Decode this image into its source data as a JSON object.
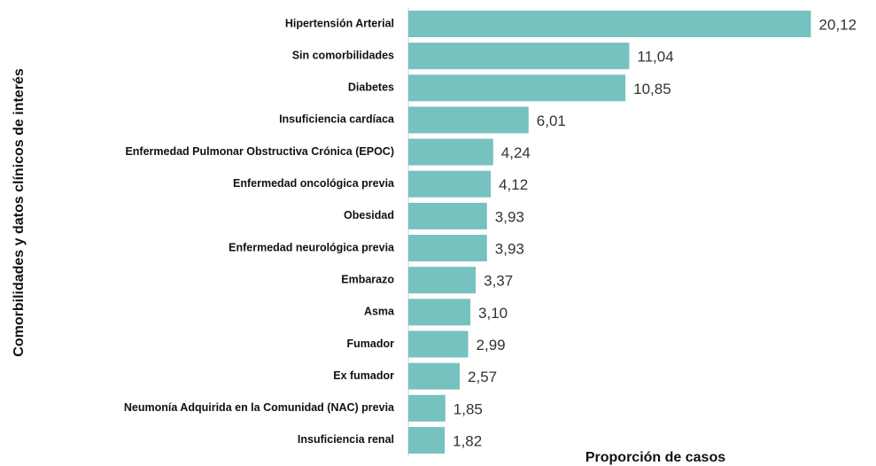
{
  "chart_data": {
    "type": "barh",
    "ylabel": "Comorbilidades y datos clínicos de interés",
    "xlabel": "Proporción de casos",
    "categories": [
      "Hipertensión Arterial",
      "Sin comorbilidades",
      "Diabetes",
      "Insuficiencia cardíaca",
      "Enfermedad Pulmonar Obstructiva Crónica (EPOC)",
      "Enfermedad oncológica previa",
      "Obesidad",
      "Enfermedad neurológica previa",
      "Embarazo",
      "Asma",
      "Fumador",
      "Ex fumador",
      "Neumonía Adquirida en la Comunidad (NAC) previa",
      "Insuficiencia renal"
    ],
    "values": [
      20.12,
      11.04,
      10.85,
      6.01,
      4.24,
      4.12,
      3.93,
      3.93,
      3.37,
      3.1,
      2.99,
      2.57,
      1.85,
      1.82
    ],
    "value_labels": [
      "20,12",
      "11,04",
      "10,85",
      "6,01",
      "4,24",
      "4,12",
      "3,93",
      "3,93",
      "3,37",
      "3,10",
      "2,99",
      "2,57",
      "1,85",
      "1,82"
    ],
    "color": "#76c2c0",
    "xlim": [
      0,
      22
    ]
  }
}
